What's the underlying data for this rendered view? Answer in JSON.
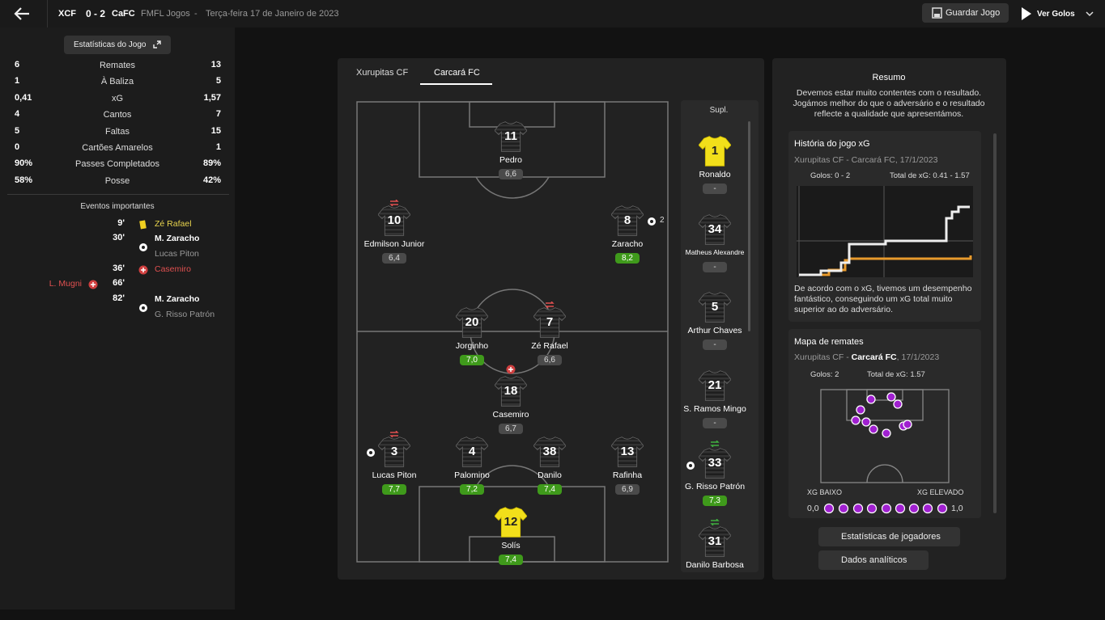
{
  "header": {
    "home": "XCF",
    "score": "0 - 2",
    "away": "CaFC",
    "competition": "FMFL Jogos",
    "separator": "-",
    "date": "Terça-feira 17 de Janeiro de 2023",
    "save": "Guardar Jogo",
    "goals": "Ver Golos"
  },
  "stats": {
    "title": "Estatísticas do Jogo",
    "rows": [
      [
        "6",
        "Remates",
        "13"
      ],
      [
        "1",
        "À Baliza",
        "5"
      ],
      [
        "0,41",
        "xG",
        "1,57"
      ],
      [
        "4",
        "Cantos",
        "7"
      ],
      [
        "5",
        "Faltas",
        "15"
      ],
      [
        "0",
        "Cartões Amarelos",
        "1"
      ],
      [
        "90%",
        "Passes Completados",
        "89%"
      ],
      [
        "58%",
        "Posse",
        "42%"
      ]
    ]
  },
  "events": {
    "title": "Eventos importantes",
    "items": [
      {
        "minute": "9'",
        "player": "Zé Rafael"
      },
      {
        "minute": "30'",
        "player": "M. Zaracho",
        "assist": "Lucas Piton"
      },
      {
        "minute": "36'",
        "player": "Casemiro"
      },
      {
        "minute": "66'",
        "player": "L. Mugni"
      },
      {
        "minute": "82'",
        "player": "M. Zaracho",
        "assist": "G. Risso Patrón"
      }
    ]
  },
  "tabs": [
    "Xurupitas CF",
    "Carcará FC"
  ],
  "players": [
    {
      "number": "11",
      "name": "Pedro",
      "rating": "6,6"
    },
    {
      "number": "10",
      "name": "Edmilson Junior",
      "rating": "6,4"
    },
    {
      "number": "8",
      "name": "Zaracho",
      "rating": "8,2",
      "goals": "2"
    },
    {
      "number": "20",
      "name": "Jorginho",
      "rating": "7,0"
    },
    {
      "number": "7",
      "name": "Zé Rafael",
      "rating": "6,6"
    },
    {
      "number": "18",
      "name": "Casemiro",
      "rating": "6,7"
    },
    {
      "number": "3",
      "name": "Lucas Piton",
      "rating": "7,7"
    },
    {
      "number": "4",
      "name": "Palomino",
      "rating": "7,2"
    },
    {
      "number": "38",
      "name": "Danilo",
      "rating": "7,4"
    },
    {
      "number": "13",
      "name": "Rafinha",
      "rating": "6,9"
    },
    {
      "number": "12",
      "name": "Solís",
      "rating": "7,4"
    }
  ],
  "subs": {
    "title": "Supl.",
    "players": [
      {
        "number": "1",
        "name": "Ronaldo",
        "rating": "-"
      },
      {
        "number": "34",
        "name": "Matheus Alexandre",
        "rating": "-"
      },
      {
        "number": "5",
        "name": "Arthur Chaves",
        "rating": "-"
      },
      {
        "number": "21",
        "name": "S. Ramos Mingo",
        "rating": "-"
      },
      {
        "number": "33",
        "name": "G. Risso Patrón",
        "rating": "7,3"
      },
      {
        "number": "31",
        "name": "Danilo Barbosa"
      }
    ]
  },
  "summary": {
    "title": "Resumo",
    "text": "Devemos estar muito contentes com o resultado. Jogámos melhor do que o adversário e o resultado reflecte a qualidade que apresentámos."
  },
  "xg_card": {
    "title": "História do jogo xG",
    "subtitle": "Xurupitas CF - Carcará FC, 17/1/2023",
    "goals": "Golos: 0 - 2",
    "xg": "Total de xG: 0.41 - 1.57",
    "text": "De acordo com o xG, tivemos um desempenho fantástico, conseguindo um xG total muito superior ao do adversário."
  },
  "shots_card": {
    "title": "Mapa de remates",
    "subtitle_start": "Xurupitas CF - ",
    "subtitle_team": "Carcará FC",
    "subtitle_end": ", 17/1/2023",
    "goals": "Golos: 2",
    "xg": "Total de xG: 1.57",
    "low": "XG BAIXO",
    "high": "XG ELEVADO",
    "min": "0,0",
    "max": "1,0"
  },
  "buttons": [
    "Estatísticas de jogadores",
    "Dados analíticos"
  ]
}
